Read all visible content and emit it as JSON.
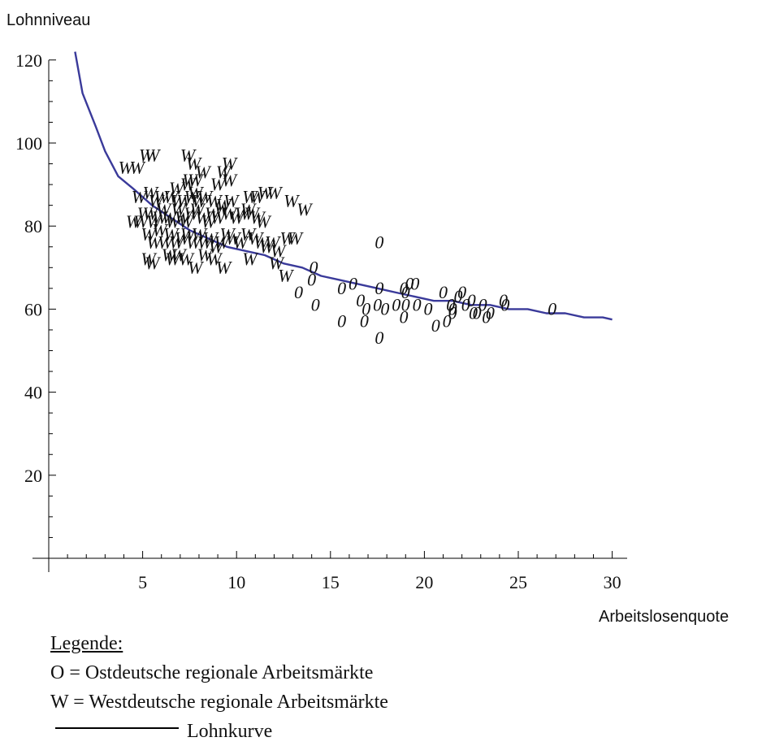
{
  "chart_data": {
    "type": "scatter",
    "xlabel": "Arbeitslosenquote",
    "ylabel": "Lohnniveau",
    "xlim": [
      0,
      30.7
    ],
    "ylim": [
      0,
      122
    ],
    "x_ticks": [
      5,
      10,
      15,
      20,
      25,
      30
    ],
    "y_ticks": [
      20,
      40,
      60,
      80,
      100,
      120
    ],
    "grid": false,
    "colors": {
      "curve": "#3a3a9a",
      "markers": "#111111"
    },
    "series": [
      {
        "name": "W",
        "marker": "W",
        "points": [
          [
            4.1,
            94
          ],
          [
            4.7,
            94
          ],
          [
            5.2,
            97
          ],
          [
            5.5,
            97
          ],
          [
            7.4,
            97
          ],
          [
            7.7,
            95
          ],
          [
            8.2,
            93
          ],
          [
            9.3,
            93
          ],
          [
            9.6,
            95
          ],
          [
            9.0,
            90
          ],
          [
            9.6,
            91
          ],
          [
            7.8,
            91
          ],
          [
            7.5,
            91
          ],
          [
            7.4,
            90
          ],
          [
            7.8,
            88
          ],
          [
            4.8,
            87
          ],
          [
            5.4,
            88
          ],
          [
            5.7,
            86
          ],
          [
            6.0,
            87
          ],
          [
            6.5,
            87
          ],
          [
            6.9,
            86
          ],
          [
            6.8,
            89
          ],
          [
            7.2,
            86
          ],
          [
            7.6,
            87
          ],
          [
            8.0,
            86
          ],
          [
            8.3,
            87
          ],
          [
            8.8,
            86
          ],
          [
            9.3,
            85
          ],
          [
            9.7,
            86
          ],
          [
            10.7,
            87
          ],
          [
            11.1,
            87
          ],
          [
            11.5,
            88
          ],
          [
            12.0,
            88
          ],
          [
            12.9,
            86
          ],
          [
            13.6,
            84
          ],
          [
            4.5,
            81
          ],
          [
            4.9,
            81
          ],
          [
            5.1,
            83
          ],
          [
            5.4,
            83
          ],
          [
            5.6,
            81
          ],
          [
            5.9,
            82
          ],
          [
            6.1,
            84
          ],
          [
            6.4,
            82
          ],
          [
            6.6,
            81
          ],
          [
            6.9,
            84
          ],
          [
            7.1,
            82
          ],
          [
            7.3,
            81
          ],
          [
            7.6,
            83
          ],
          [
            7.9,
            84
          ],
          [
            8.2,
            82
          ],
          [
            8.5,
            81
          ],
          [
            8.7,
            83
          ],
          [
            9.0,
            82
          ],
          [
            9.2,
            84
          ],
          [
            9.6,
            83
          ],
          [
            10.0,
            82
          ],
          [
            10.3,
            83
          ],
          [
            10.6,
            84
          ],
          [
            10.8,
            83
          ],
          [
            11.1,
            82
          ],
          [
            11.4,
            81
          ],
          [
            5.3,
            78
          ],
          [
            5.6,
            76
          ],
          [
            5.9,
            79
          ],
          [
            6.2,
            76
          ],
          [
            6.5,
            78
          ],
          [
            6.8,
            76
          ],
          [
            7.1,
            77
          ],
          [
            7.4,
            78
          ],
          [
            7.7,
            76
          ],
          [
            8.0,
            78
          ],
          [
            8.3,
            76
          ],
          [
            8.6,
            77
          ],
          [
            8.9,
            75
          ],
          [
            9.2,
            76
          ],
          [
            9.5,
            78
          ],
          [
            9.8,
            77
          ],
          [
            10.2,
            76
          ],
          [
            10.6,
            78
          ],
          [
            11.0,
            77
          ],
          [
            11.3,
            76
          ],
          [
            11.6,
            75
          ],
          [
            11.9,
            76
          ],
          [
            12.2,
            74
          ],
          [
            12.7,
            77
          ],
          [
            13.1,
            77
          ],
          [
            5.3,
            72
          ],
          [
            5.5,
            71
          ],
          [
            6.4,
            73
          ],
          [
            6.6,
            72
          ],
          [
            6.9,
            73
          ],
          [
            7.3,
            72
          ],
          [
            7.8,
            70
          ],
          [
            8.3,
            73
          ],
          [
            8.8,
            72
          ],
          [
            9.3,
            70
          ],
          [
            10.7,
            72
          ],
          [
            12.1,
            71
          ],
          [
            12.6,
            68
          ]
        ]
      },
      {
        "name": "O",
        "marker": "0",
        "points": [
          [
            14.1,
            70
          ],
          [
            14.0,
            67
          ],
          [
            13.3,
            64
          ],
          [
            14.2,
            61
          ],
          [
            15.6,
            65
          ],
          [
            16.2,
            66
          ],
          [
            17.6,
            76
          ],
          [
            17.6,
            65
          ],
          [
            16.6,
            62
          ],
          [
            16.9,
            60
          ],
          [
            17.5,
            61
          ],
          [
            17.9,
            60
          ],
          [
            18.5,
            61
          ],
          [
            19.0,
            61
          ],
          [
            18.9,
            65
          ],
          [
            19.0,
            64
          ],
          [
            19.2,
            66
          ],
          [
            19.5,
            66
          ],
          [
            19.6,
            61
          ],
          [
            20.2,
            60
          ],
          [
            21.0,
            64
          ],
          [
            21.4,
            61
          ],
          [
            21.5,
            60
          ],
          [
            21.8,
            63
          ],
          [
            22.0,
            64
          ],
          [
            22.2,
            61
          ],
          [
            22.5,
            62
          ],
          [
            22.8,
            59
          ],
          [
            23.1,
            61
          ],
          [
            23.5,
            59
          ],
          [
            24.2,
            62
          ],
          [
            24.3,
            61
          ],
          [
            26.8,
            60
          ],
          [
            15.6,
            57
          ],
          [
            16.8,
            57
          ],
          [
            17.6,
            53
          ],
          [
            18.9,
            58
          ],
          [
            20.6,
            56
          ],
          [
            21.2,
            57
          ],
          [
            21.5,
            59
          ],
          [
            22.6,
            59
          ],
          [
            23.3,
            58
          ]
        ]
      },
      {
        "name": "Lohnkurve",
        "line": true,
        "points": [
          [
            1.4,
            122
          ],
          [
            1.8,
            112
          ],
          [
            2.5,
            104
          ],
          [
            3.0,
            98
          ],
          [
            3.7,
            92
          ],
          [
            4.5,
            89
          ],
          [
            5.5,
            85
          ],
          [
            6.5,
            82
          ],
          [
            7.5,
            79
          ],
          [
            8.5,
            77
          ],
          [
            9.5,
            75
          ],
          [
            10.5,
            74
          ],
          [
            11.5,
            73
          ],
          [
            12.5,
            71
          ],
          [
            13.5,
            70
          ],
          [
            14.5,
            68
          ],
          [
            15.5,
            67
          ],
          [
            16.5,
            66
          ],
          [
            17.5,
            65
          ],
          [
            18.5,
            64
          ],
          [
            19.5,
            63
          ],
          [
            20.5,
            62
          ],
          [
            21.5,
            62
          ],
          [
            22.5,
            61
          ],
          [
            23.5,
            61
          ],
          [
            24.5,
            60
          ],
          [
            25.5,
            60
          ],
          [
            26.5,
            59
          ],
          [
            27.5,
            59
          ],
          [
            28.5,
            58
          ],
          [
            29.5,
            58
          ],
          [
            30.0,
            57.5
          ]
        ]
      }
    ]
  },
  "legend": {
    "title": "Legende:",
    "o_entry": "O = Ostdeutsche regionale Arbeitsmärkte",
    "w_entry": "W = Westdeutsche regionale Arbeitsmärkte",
    "line_entry": "Lohnkurve"
  }
}
